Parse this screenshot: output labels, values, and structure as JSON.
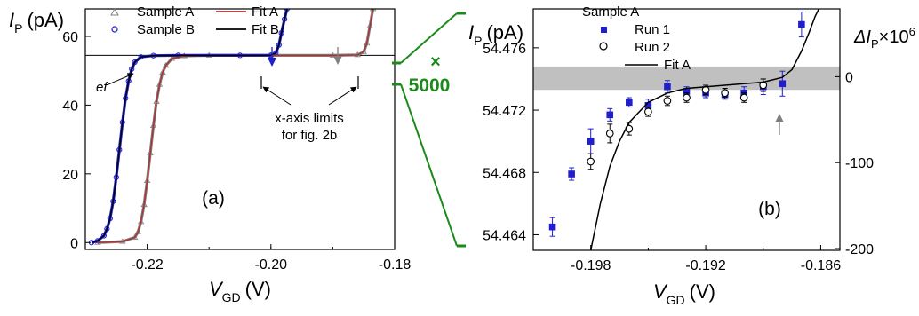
{
  "chart_data": [
    {
      "panel": "(a)",
      "type": "line",
      "xlabel": "V",
      "xlabel_sub": "GD",
      "xunit": "(V)",
      "ylabel": "I",
      "ylabel_sub": "P",
      "yunit": "(pA)",
      "xlim": [
        -0.23,
        -0.18
      ],
      "ylim": [
        -2,
        68
      ],
      "xticks": [
        -0.22,
        -0.2,
        -0.18
      ],
      "xtick_labels": [
        "-0.22",
        "-0.20",
        "-0.18"
      ],
      "yticks": [
        0,
        20,
        40,
        60
      ],
      "ytick_labels": [
        "0",
        "20",
        "40",
        "60"
      ],
      "legend": {
        "placement": "top",
        "entries": [
          {
            "label": "Sample A",
            "marker": "triangle",
            "color": "#808080"
          },
          {
            "label": "Sample B",
            "marker": "circle",
            "color": "#1f1fd0"
          },
          {
            "label": "Fit A",
            "marker": "line",
            "color": "#b03030"
          },
          {
            "label": "Fit B",
            "marker": "line",
            "color": "#000000"
          }
        ]
      },
      "series": [
        {
          "name": "Sample A",
          "color": "#808080",
          "x": [
            -0.228,
            -0.224,
            -0.222,
            -0.2215,
            -0.221,
            -0.2205,
            -0.22,
            -0.2195,
            -0.219,
            -0.2185,
            -0.218,
            -0.2175,
            -0.217,
            -0.216,
            -0.214,
            -0.21,
            -0.2,
            -0.19,
            -0.186,
            -0.185,
            -0.1845,
            -0.184,
            -0.1835
          ],
          "y": [
            0,
            0.3,
            1.5,
            3,
            6,
            11,
            18,
            26,
            34,
            41,
            46,
            49.5,
            51.5,
            53.5,
            54.3,
            54.47,
            54.47,
            54.47,
            54.6,
            55.5,
            58,
            63,
            68
          ]
        },
        {
          "name": "Sample B",
          "color": "#1f1fd0",
          "x": [
            -0.229,
            -0.228,
            -0.227,
            -0.2265,
            -0.226,
            -0.2255,
            -0.225,
            -0.2245,
            -0.224,
            -0.2235,
            -0.223,
            -0.2225,
            -0.222,
            -0.221,
            -0.219,
            -0.215,
            -0.205,
            -0.2,
            -0.1992,
            -0.1987,
            -0.1983,
            -0.1978,
            -0.1974
          ],
          "y": [
            0,
            0.5,
            2,
            4,
            7,
            12,
            19,
            27,
            35,
            42,
            47,
            50.5,
            52.5,
            54,
            54.4,
            54.47,
            54.47,
            54.5,
            55.2,
            57.5,
            61,
            65,
            68
          ]
        },
        {
          "name": "Fit A",
          "color": "#b03030",
          "x": [
            -0.228,
            -0.224,
            -0.222,
            -0.2215,
            -0.221,
            -0.2205,
            -0.22,
            -0.2195,
            -0.219,
            -0.2185,
            -0.218,
            -0.2175,
            -0.217,
            -0.216,
            -0.214,
            -0.21,
            -0.2,
            -0.19,
            -0.186,
            -0.185,
            -0.1845,
            -0.184,
            -0.1835
          ],
          "y": [
            0,
            0.3,
            1.5,
            3,
            6,
            11,
            18,
            26,
            34,
            41,
            46,
            49.5,
            51.5,
            53.5,
            54.3,
            54.47,
            54.47,
            54.47,
            54.6,
            55.5,
            58,
            63,
            68
          ]
        },
        {
          "name": "Fit B",
          "color": "#000000",
          "x": [
            -0.229,
            -0.228,
            -0.227,
            -0.2265,
            -0.226,
            -0.2255,
            -0.225,
            -0.2245,
            -0.224,
            -0.2235,
            -0.223,
            -0.2225,
            -0.222,
            -0.221,
            -0.219,
            -0.215,
            -0.205,
            -0.2,
            -0.1992,
            -0.1987,
            -0.1983,
            -0.1978,
            -0.1974
          ],
          "y": [
            0,
            0.5,
            2,
            4,
            7,
            12,
            19,
            27,
            35,
            42,
            47,
            50.5,
            52.5,
            54,
            54.4,
            54.47,
            54.47,
            54.5,
            55.2,
            57.5,
            61,
            65,
            68
          ]
        }
      ],
      "ef_line": {
        "y": 54.47,
        "xlim": [
          -0.23,
          -0.18
        ]
      },
      "annotations": [
        {
          "text": "ef",
          "x": -0.2275,
          "y": 47
        },
        {
          "text": "x-axis limits",
          "x": -0.1925,
          "y": 40
        },
        {
          "text": "for fig. 2b",
          "x": -0.1925,
          "y": 33
        },
        {
          "text": "(a)",
          "x": -0.212,
          "y": 12
        }
      ],
      "limit_bracket": {
        "x_from": -0.2005,
        "x_to": -0.1855,
        "y": 50
      },
      "arrows": [
        {
          "x": -0.198,
          "color": "#1f1fd0"
        },
        {
          "x": -0.189,
          "color": "#808080"
        }
      ]
    },
    {
      "panel": "(b)",
      "type": "scatter",
      "xlabel": "V",
      "xlabel_sub": "GD",
      "xunit": "(V)",
      "ylabel": "I",
      "ylabel_sub": "P",
      "yunit": "(pA)",
      "y2label": "ΔI",
      "y2label_sub": "P",
      "y2label_suffix": "×10",
      "y2label_sup": "6",
      "xlim": [
        -0.201,
        -0.185
      ],
      "ylim": [
        54.463,
        54.4785
      ],
      "y2lim": [
        -200,
        50
      ],
      "xticks": [
        -0.198,
        -0.192,
        -0.186
      ],
      "xtick_labels": [
        "-0.198",
        "-0.192",
        "-0.186"
      ],
      "yticks": [
        54.464,
        54.468,
        54.472,
        54.476
      ],
      "ytick_labels": [
        "54.464",
        "54.468",
        "54.472",
        "54.476"
      ],
      "y2ticks": [
        0,
        -100,
        -200
      ],
      "y2tick_labels": [
        "0",
        "-100",
        "-200"
      ],
      "band": {
        "y_from": 54.4733,
        "y_to": 54.4748,
        "color": "#c0c0c0"
      },
      "legend": {
        "title": "Sample A",
        "placement": "top",
        "entries": [
          {
            "label": "Run 1",
            "marker": "filled-square",
            "color": "#1f1fd0"
          },
          {
            "label": "Run 2",
            "marker": "open-circle",
            "color": "#000000"
          },
          {
            "label": "Fit A",
            "marker": "line",
            "color": "#000000"
          }
        ]
      },
      "series": [
        {
          "name": "Run 1",
          "marker": "filled-square",
          "color": "#1f1fd0",
          "x": [
            -0.2,
            -0.199,
            -0.198,
            -0.197,
            -0.196,
            -0.195,
            -0.194,
            -0.193,
            -0.192,
            -0.191,
            -0.19,
            -0.189,
            -0.188,
            -0.187
          ],
          "y": [
            54.4645,
            54.4679,
            54.47,
            54.4717,
            54.4725,
            54.4723,
            54.4735,
            54.4732,
            54.4731,
            54.473,
            54.4731,
            54.4735,
            54.4737,
            54.4775
          ],
          "err": [
            0.0006,
            0.0004,
            0.0008,
            0.0004,
            0.0003,
            0.0004,
            0.0004,
            0.0003,
            0.0003,
            0.0003,
            0.0004,
            0.0005,
            0.0008,
            0.0008
          ]
        },
        {
          "name": "Run 2",
          "marker": "open-circle",
          "color": "#000000",
          "x": [
            -0.198,
            -0.197,
            -0.196,
            -0.195,
            -0.194,
            -0.193,
            -0.192,
            -0.191,
            -0.19,
            -0.189
          ],
          "y": [
            54.4687,
            54.4705,
            54.4708,
            54.4719,
            54.4726,
            54.4728,
            54.4733,
            54.4731,
            54.4728,
            54.4736
          ],
          "err": [
            0.0005,
            0.0006,
            0.0004,
            0.0003,
            0.0003,
            0.0003,
            0.0003,
            0.0003,
            0.0003,
            0.0004
          ]
        },
        {
          "name": "Fit A",
          "marker": "line",
          "color": "#000000",
          "x": [
            -0.198,
            -0.1975,
            -0.197,
            -0.1965,
            -0.196,
            -0.195,
            -0.194,
            -0.193,
            -0.192,
            -0.191,
            -0.19,
            -0.189,
            -0.188,
            -0.1875,
            -0.187,
            -0.1866,
            -0.1863,
            -0.1861
          ],
          "y": [
            54.463,
            54.466,
            54.4684,
            54.47,
            54.4712,
            54.4725,
            54.4731,
            54.4734,
            54.4735,
            54.4736,
            54.4737,
            54.4738,
            54.4741,
            54.4746,
            54.4758,
            54.477,
            54.478,
            54.4785
          ]
        }
      ],
      "annotations": [
        {
          "text": "(b)",
          "x": -0.189,
          "y": 54.4655
        }
      ],
      "arrows": [
        {
          "x": -0.188,
          "color": "#808080"
        }
      ]
    }
  ],
  "zoom": {
    "label": "× ",
    "value": "5000",
    "color": "#1a8a1a"
  }
}
